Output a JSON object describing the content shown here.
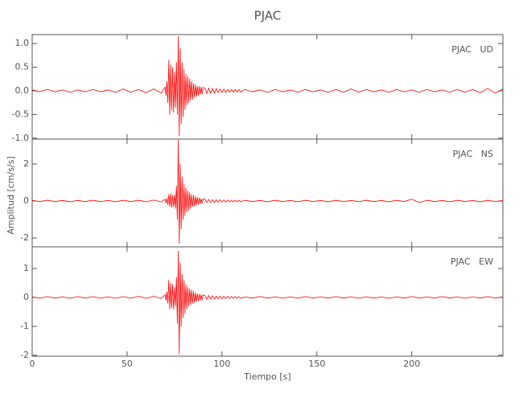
{
  "chart_data": [
    {
      "type": "line",
      "title": "PJAC",
      "label": "PJAC   UD",
      "color": "#ff0000",
      "xlim": [
        0,
        248
      ],
      "xticks": [
        0,
        50,
        100,
        150,
        200
      ],
      "ylim": [
        -1.02,
        1.19
      ],
      "yticks": [
        {
          "value": -1,
          "label": "-1.0"
        },
        -0.5,
        {
          "value": 0,
          "label": "0.0"
        },
        0.5,
        {
          "value": 1,
          "label": "1.0"
        }
      ],
      "x": [
        0,
        4,
        8,
        12,
        16,
        20,
        24,
        28,
        32,
        36,
        40,
        44,
        48,
        52,
        56,
        60,
        64,
        68,
        70,
        70.5,
        71,
        71.5,
        72,
        72.5,
        73,
        73.5,
        74,
        74.5,
        75,
        75.5,
        76,
        76.5,
        77,
        77.5,
        78,
        78.5,
        79,
        79.5,
        80,
        80.5,
        81,
        81.5,
        82,
        82.5,
        83,
        83.5,
        84,
        84.5,
        85,
        85.5,
        86,
        86.5,
        87,
        87.5,
        88,
        88.5,
        89,
        89.5,
        90,
        91,
        92,
        93,
        94,
        95,
        96,
        97,
        98,
        99,
        100,
        101,
        102,
        103,
        104,
        105,
        106,
        107,
        108,
        109,
        110,
        112,
        116,
        120,
        124,
        128,
        132,
        136,
        140,
        144,
        148,
        152,
        156,
        160,
        164,
        168,
        172,
        176,
        180,
        184,
        188,
        192,
        196,
        200,
        204,
        208,
        212,
        216,
        220,
        224,
        228,
        232,
        236,
        240,
        244,
        248
      ],
      "values": [
        0.02,
        -0.02,
        0.03,
        -0.02,
        0.02,
        -0.03,
        0.02,
        -0.02,
        0.03,
        -0.02,
        0.02,
        -0.03,
        0.04,
        -0.03,
        0.03,
        -0.04,
        0.04,
        -0.05,
        0.08,
        -0.1,
        0.2,
        -0.25,
        0.65,
        -0.5,
        0.55,
        -0.4,
        0.5,
        -0.45,
        0.4,
        -0.35,
        0.6,
        -0.5,
        1.15,
        -0.95,
        0.9,
        -0.7,
        0.6,
        -0.55,
        0.45,
        -0.4,
        0.35,
        -0.3,
        0.3,
        -0.25,
        0.25,
        -0.2,
        0.2,
        -0.18,
        0.15,
        -0.14,
        0.13,
        -0.12,
        0.1,
        -0.1,
        0.09,
        -0.08,
        0.08,
        -0.07,
        0.07,
        0.06,
        -0.06,
        0.06,
        -0.05,
        0.05,
        -0.05,
        0.05,
        -0.04,
        0.04,
        -0.04,
        0.04,
        -0.04,
        0.03,
        -0.03,
        0.03,
        -0.03,
        0.03,
        -0.03,
        0.03,
        -0.03,
        0.03,
        -0.02,
        0.02,
        -0.03,
        0.03,
        -0.02,
        0.02,
        -0.03,
        0.03,
        -0.02,
        0.02,
        -0.03,
        0.03,
        -0.03,
        0.04,
        -0.03,
        0.03,
        -0.02,
        0.02,
        -0.03,
        0.03,
        -0.02,
        0.02,
        -0.03,
        0.03,
        -0.02,
        0.02,
        -0.03,
        0.03,
        -0.03,
        0.03,
        -0.04,
        0.05,
        -0.05,
        0.04
      ]
    },
    {
      "type": "line",
      "label": "PJAC   NS",
      "color": "#ff0000",
      "ylabel": "Amplitud [cm/s/s]",
      "xlim": [
        0,
        248
      ],
      "xticks": [
        0,
        50,
        100,
        150,
        200
      ],
      "ylim": [
        -2.48,
        3.35
      ],
      "yticks": [
        -2,
        0,
        2
      ],
      "x": [
        0,
        4,
        8,
        12,
        16,
        20,
        24,
        28,
        32,
        36,
        40,
        44,
        48,
        52,
        56,
        60,
        64,
        68,
        70,
        70.5,
        71,
        71.5,
        72,
        72.5,
        73,
        73.5,
        74,
        74.5,
        75,
        75.5,
        76,
        76.5,
        77,
        77.5,
        78,
        78.5,
        79,
        79.5,
        80,
        80.5,
        81,
        81.5,
        82,
        82.5,
        83,
        83.5,
        84,
        84.5,
        85,
        85.5,
        86,
        86.5,
        87,
        87.5,
        88,
        88.5,
        89,
        89.5,
        90,
        91,
        92,
        93,
        94,
        95,
        96,
        97,
        98,
        99,
        100,
        101,
        102,
        103,
        104,
        105,
        106,
        107,
        108,
        109,
        110,
        112,
        116,
        120,
        124,
        128,
        132,
        136,
        140,
        144,
        148,
        152,
        156,
        160,
        164,
        168,
        172,
        176,
        180,
        184,
        188,
        192,
        196,
        200,
        204,
        208,
        212,
        216,
        220,
        224,
        228,
        232,
        236,
        240,
        244,
        248
      ],
      "values": [
        0.03,
        -0.03,
        0.04,
        -0.03,
        0.03,
        -0.04,
        0.03,
        -0.03,
        0.04,
        -0.03,
        0.03,
        -0.04,
        0.04,
        -0.03,
        0.04,
        -0.04,
        0.05,
        -0.05,
        0.1,
        -0.1,
        0.15,
        -0.2,
        0.35,
        -0.3,
        0.4,
        -0.35,
        0.3,
        -0.3,
        0.35,
        -0.4,
        0.8,
        -1.0,
        3.3,
        -2.3,
        2.0,
        -1.5,
        1.3,
        -1.0,
        0.9,
        -0.8,
        0.7,
        -0.6,
        0.55,
        -0.5,
        0.45,
        -0.4,
        0.35,
        -0.3,
        0.3,
        -0.28,
        0.25,
        -0.22,
        0.2,
        -0.18,
        0.16,
        -0.15,
        0.13,
        -0.12,
        0.1,
        0.1,
        -0.09,
        0.09,
        -0.08,
        0.08,
        -0.08,
        0.07,
        -0.07,
        0.07,
        -0.06,
        0.06,
        -0.06,
        0.06,
        -0.05,
        0.05,
        -0.05,
        0.05,
        -0.05,
        0.04,
        -0.04,
        0.04,
        -0.03,
        0.03,
        -0.04,
        0.04,
        -0.03,
        0.03,
        -0.04,
        0.04,
        -0.03,
        0.03,
        -0.04,
        0.04,
        -0.03,
        0.03,
        -0.04,
        0.04,
        -0.03,
        0.03,
        -0.04,
        0.04,
        -0.03,
        0.1,
        -0.08,
        0.04,
        -0.03,
        0.03,
        -0.04,
        0.04,
        -0.03,
        0.03,
        -0.04,
        0.04,
        -0.03,
        0.03
      ]
    },
    {
      "type": "line",
      "label": "PJAC   EW",
      "color": "#ff0000",
      "xlabel": "Tiempo [s]",
      "xlim": [
        0,
        248
      ],
      "xticks": [
        0,
        50,
        100,
        150,
        200
      ],
      "ylim": [
        -2.03,
        1.75
      ],
      "yticks": [
        -2,
        -1,
        0,
        1
      ],
      "x": [
        0,
        4,
        8,
        12,
        16,
        20,
        24,
        28,
        32,
        36,
        40,
        44,
        48,
        52,
        56,
        60,
        64,
        68,
        70,
        70.5,
        71,
        71.5,
        72,
        72.5,
        73,
        73.5,
        74,
        74.5,
        75,
        75.5,
        76,
        76.5,
        77,
        77.5,
        78,
        78.5,
        79,
        79.5,
        80,
        80.5,
        81,
        81.5,
        82,
        82.5,
        83,
        83.5,
        84,
        84.5,
        85,
        85.5,
        86,
        86.5,
        87,
        87.5,
        88,
        88.5,
        89,
        89.5,
        90,
        91,
        92,
        93,
        94,
        95,
        96,
        97,
        98,
        99,
        100,
        101,
        102,
        103,
        104,
        105,
        106,
        107,
        108,
        109,
        110,
        112,
        116,
        120,
        124,
        128,
        132,
        136,
        140,
        144,
        148,
        152,
        156,
        160,
        164,
        168,
        172,
        176,
        180,
        184,
        188,
        192,
        196,
        200,
        204,
        208,
        212,
        216,
        220,
        224,
        228,
        232,
        236,
        240,
        244,
        248
      ],
      "values": [
        0.02,
        -0.03,
        0.03,
        -0.02,
        0.02,
        -0.03,
        0.03,
        -0.02,
        0.03,
        -0.03,
        0.02,
        -0.03,
        0.03,
        -0.03,
        0.04,
        -0.03,
        0.04,
        -0.04,
        0.1,
        -0.1,
        0.2,
        -0.2,
        0.6,
        -0.4,
        0.5,
        -0.35,
        0.45,
        -0.4,
        0.35,
        -0.3,
        0.7,
        -0.9,
        1.6,
        -1.95,
        1.2,
        -1.0,
        0.8,
        -0.7,
        0.6,
        -0.55,
        0.45,
        -0.4,
        0.35,
        -0.3,
        0.3,
        -0.25,
        0.25,
        -0.2,
        0.2,
        -0.18,
        0.16,
        -0.14,
        0.13,
        -0.12,
        0.11,
        -0.1,
        0.1,
        -0.09,
        0.08,
        0.07,
        -0.07,
        0.07,
        -0.06,
        0.06,
        -0.06,
        0.05,
        -0.05,
        0.05,
        -0.05,
        0.04,
        -0.04,
        0.04,
        -0.04,
        0.04,
        -0.03,
        0.03,
        -0.03,
        0.03,
        -0.03,
        0.02,
        -0.02,
        0.03,
        -0.02,
        0.02,
        -0.03,
        0.02,
        -0.02,
        0.03,
        -0.02,
        0.02,
        -0.02,
        0.03,
        -0.02,
        0.02,
        -0.03,
        0.02,
        -0.02,
        0.02,
        -0.03,
        0.02,
        -0.02,
        0.03,
        -0.02,
        0.02,
        -0.02,
        0.03,
        -0.02,
        0.02,
        -0.03,
        0.02,
        -0.02,
        0.03,
        -0.02,
        0.02
      ]
    }
  ]
}
